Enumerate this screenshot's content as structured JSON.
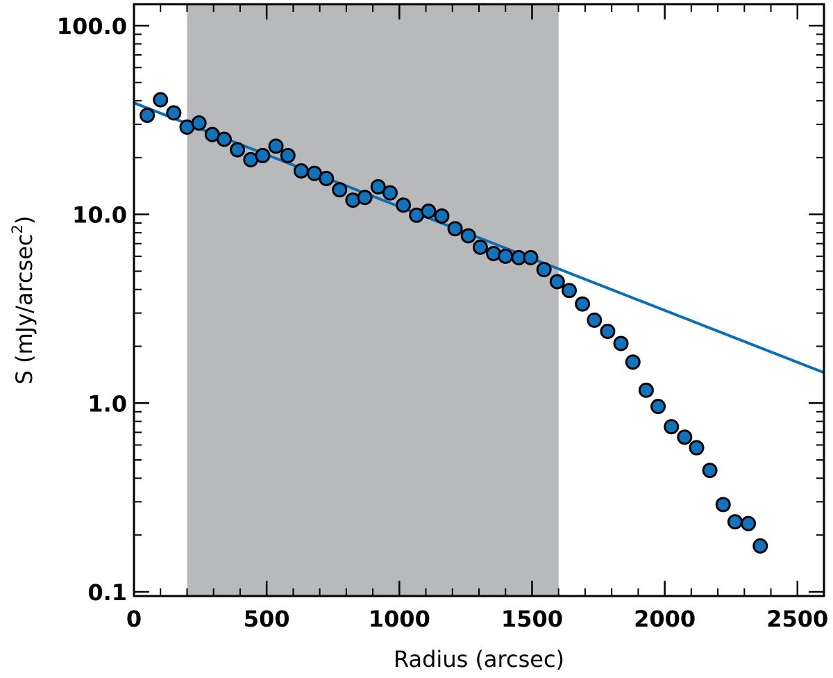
{
  "chart_data": {
    "type": "scatter",
    "xlabel": "Radius (arcsec)",
    "ylabel": "S (mJy/arcsec",
    "ylabel_superscript": "2",
    "ylabel_close": ")",
    "xlim": [
      0,
      2600
    ],
    "ylim": [
      0.095,
      130
    ],
    "yscale": "log",
    "grid": false,
    "x_ticks": [
      {
        "value": 0,
        "label": "0"
      },
      {
        "value": 500,
        "label": "500"
      },
      {
        "value": 1000,
        "label": "1000"
      },
      {
        "value": 1500,
        "label": "1500"
      },
      {
        "value": 2000,
        "label": "2000"
      },
      {
        "value": 2500,
        "label": "2500"
      }
    ],
    "y_ticks": [
      {
        "value": 0.1,
        "label": "0.1"
      },
      {
        "value": 1,
        "label": "1.0"
      },
      {
        "value": 10,
        "label": "10.0"
      },
      {
        "value": 100,
        "label": "100.0"
      }
    ],
    "shaded_region": {
      "x_start": 200,
      "x_end": 1600,
      "color": "#b8b9bb"
    },
    "fit_line": {
      "x": [
        0,
        2600
      ],
      "y": [
        39,
        1.45
      ],
      "color": "#0b6fb6"
    },
    "series": [
      {
        "marker_color": "#1273bd",
        "points": [
          {
            "x": 50,
            "y": 33.5
          },
          {
            "x": 100,
            "y": 40.5
          },
          {
            "x": 150,
            "y": 34.5
          },
          {
            "x": 200,
            "y": 29.0
          },
          {
            "x": 245,
            "y": 30.5
          },
          {
            "x": 295,
            "y": 26.5
          },
          {
            "x": 340,
            "y": 25.0
          },
          {
            "x": 390,
            "y": 22.0
          },
          {
            "x": 440,
            "y": 19.5
          },
          {
            "x": 485,
            "y": 20.5
          },
          {
            "x": 535,
            "y": 23.0
          },
          {
            "x": 580,
            "y": 20.5
          },
          {
            "x": 630,
            "y": 17.0
          },
          {
            "x": 680,
            "y": 16.5
          },
          {
            "x": 725,
            "y": 15.5
          },
          {
            "x": 775,
            "y": 13.5
          },
          {
            "x": 825,
            "y": 11.9
          },
          {
            "x": 870,
            "y": 12.3
          },
          {
            "x": 920,
            "y": 14.0
          },
          {
            "x": 965,
            "y": 13.0
          },
          {
            "x": 1015,
            "y": 11.2
          },
          {
            "x": 1065,
            "y": 9.9
          },
          {
            "x": 1110,
            "y": 10.4
          },
          {
            "x": 1160,
            "y": 9.8
          },
          {
            "x": 1210,
            "y": 8.4
          },
          {
            "x": 1260,
            "y": 7.7
          },
          {
            "x": 1305,
            "y": 6.7
          },
          {
            "x": 1355,
            "y": 6.2
          },
          {
            "x": 1400,
            "y": 6.0
          },
          {
            "x": 1450,
            "y": 5.9
          },
          {
            "x": 1495,
            "y": 5.9
          },
          {
            "x": 1545,
            "y": 5.1
          },
          {
            "x": 1595,
            "y": 4.4
          },
          {
            "x": 1640,
            "y": 3.95
          },
          {
            "x": 1690,
            "y": 3.35
          },
          {
            "x": 1735,
            "y": 2.75
          },
          {
            "x": 1785,
            "y": 2.4
          },
          {
            "x": 1835,
            "y": 2.07
          },
          {
            "x": 1880,
            "y": 1.65
          },
          {
            "x": 1930,
            "y": 1.17
          },
          {
            "x": 1975,
            "y": 0.96
          },
          {
            "x": 2025,
            "y": 0.75
          },
          {
            "x": 2075,
            "y": 0.66
          },
          {
            "x": 2120,
            "y": 0.58
          },
          {
            "x": 2170,
            "y": 0.44
          },
          {
            "x": 2220,
            "y": 0.29
          },
          {
            "x": 2265,
            "y": 0.235
          },
          {
            "x": 2315,
            "y": 0.23
          },
          {
            "x": 2360,
            "y": 0.175
          }
        ]
      }
    ]
  }
}
